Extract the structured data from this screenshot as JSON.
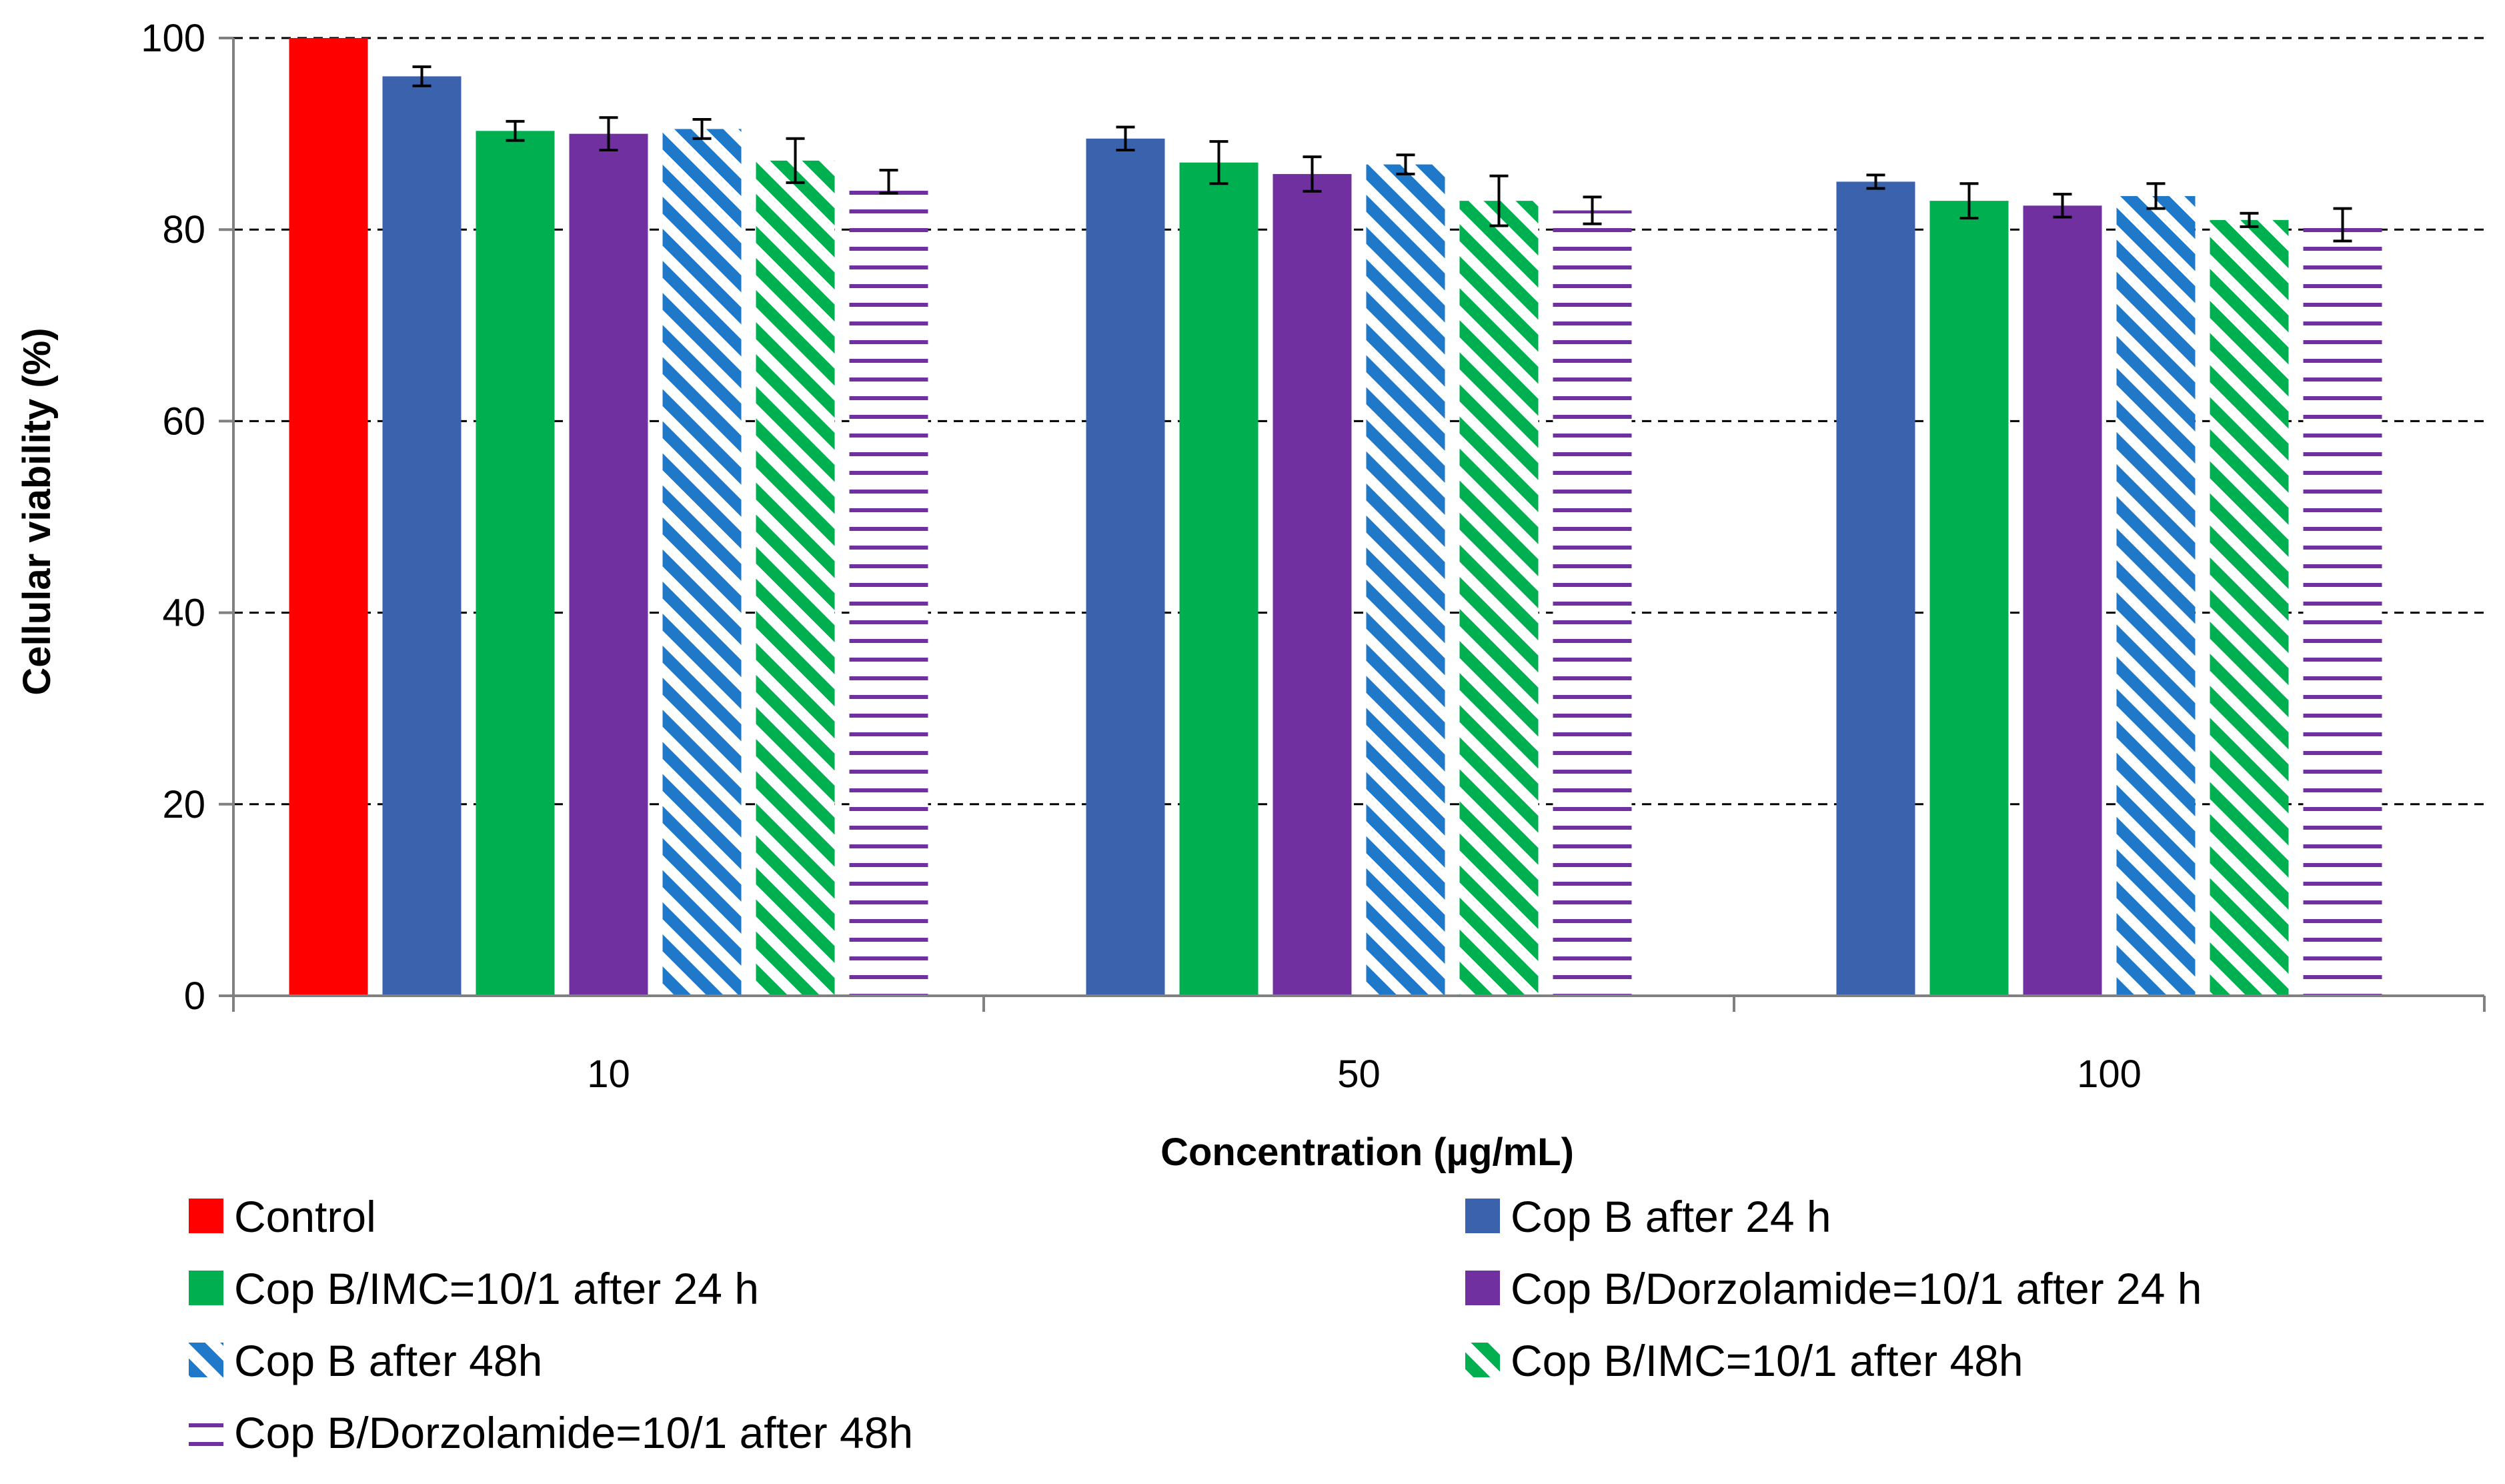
{
  "chart_data": {
    "type": "bar",
    "title": "",
    "xlabel": "Concentration (µg/mL)",
    "ylabel": "Cellular viability (%)",
    "ylim": [
      0,
      100
    ],
    "yticks": [
      0,
      20,
      40,
      60,
      80,
      100
    ],
    "grid": true,
    "categories": [
      "10",
      "50",
      "100"
    ],
    "series": [
      {
        "name": "Control",
        "color": "#ff0000",
        "pattern": "solid",
        "values": [
          100,
          null,
          null
        ],
        "errors": [
          0,
          null,
          null
        ]
      },
      {
        "name": "Cop B after 24 h",
        "color": "#3a62ad",
        "pattern": "solid",
        "values": [
          96,
          89.5,
          85
        ],
        "errors": [
          1,
          1.2,
          0.7
        ]
      },
      {
        "name": "Cop B/IMC=10/1 after 24 h",
        "color": "#00b050",
        "pattern": "solid",
        "values": [
          90.3,
          87,
          83
        ],
        "errors": [
          1,
          2.2,
          1.8
        ]
      },
      {
        "name": "Cop B/Dorzolamide=10/1 after 24 h",
        "color": "#7030a0",
        "pattern": "solid",
        "values": [
          90,
          85.8,
          82.5
        ],
        "errors": [
          1.7,
          1.8,
          1.2
        ]
      },
      {
        "name": "Cop B after 48h",
        "color": "#1f78c8",
        "pattern": "diagonal",
        "values": [
          90.5,
          86.8,
          83.5
        ],
        "errors": [
          1,
          1,
          1.3
        ]
      },
      {
        "name": "Cop B/IMC=10/1 after 48h",
        "color": "#00b050",
        "pattern": "diagonal",
        "values": [
          87.2,
          83,
          81
        ],
        "errors": [
          2.3,
          2.6,
          0.7
        ]
      },
      {
        "name": "Cop B/Dorzolamide=10/1 after 48h",
        "color": "#7030a0",
        "pattern": "horizontal",
        "values": [
          85,
          82,
          80.5
        ],
        "errors": [
          1.2,
          1.4,
          1.7
        ]
      }
    ],
    "legend_position": "bottom"
  }
}
